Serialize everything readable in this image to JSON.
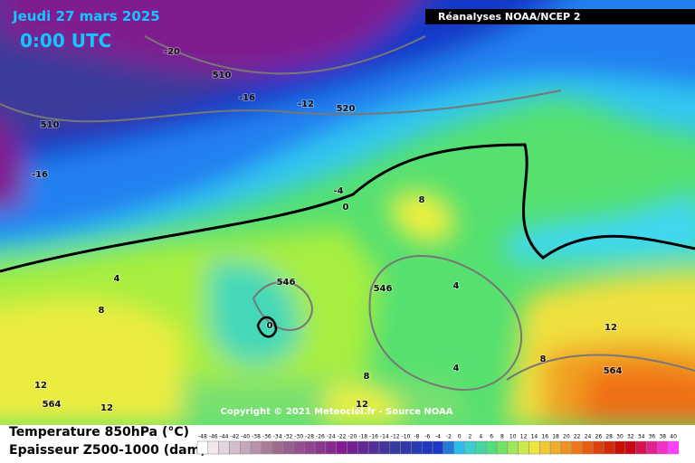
{
  "header": {
    "date": "Jeudi 27 mars 2025",
    "time": "0:00 UTC",
    "source": "Réanalyses NOAA/NCEP 2"
  },
  "copyright": "Copyright © 2021 Meteociel.fr - Source NOAA",
  "footer": {
    "line1": "Temperature 850hPa (°C)",
    "line2": "Epaisseur Z500-1000 (dam)"
  },
  "contour_labels": [
    -20,
    510,
    -16,
    -12,
    520,
    510,
    -16,
    -4,
    0,
    8,
    4,
    8,
    546,
    0,
    546,
    4,
    12,
    564,
    4,
    8,
    8,
    12,
    564,
    12,
    12
  ],
  "legend": [
    -48,
    -46,
    -44,
    -42,
    -40,
    -38,
    -36,
    -34,
    -32,
    -30,
    -28,
    -26,
    -24,
    -22,
    -20,
    -18,
    -16,
    -14,
    -12,
    -10,
    -8,
    -6,
    -4,
    -2,
    0,
    2,
    4,
    6,
    8,
    10,
    12,
    14,
    16,
    18,
    20,
    22,
    24,
    26,
    28,
    30,
    32,
    34,
    36,
    38,
    40
  ]
}
